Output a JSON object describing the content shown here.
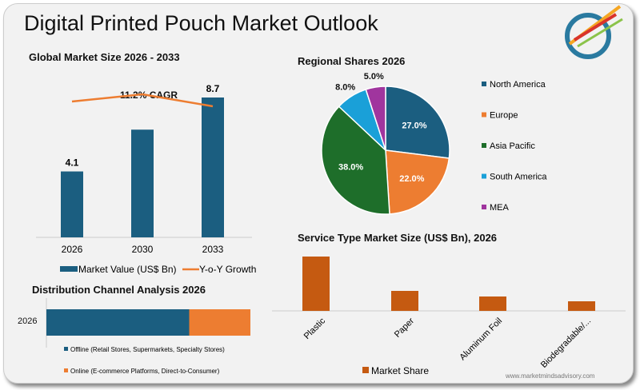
{
  "title": "Digital Printed Pouch Market Outlook",
  "website": "www.marketmindsadvisory.com",
  "logo": {
    "icon": "arrows-target-logo"
  },
  "chart_data": [
    {
      "type": "bar",
      "title": "Global Market Size 2026 - 2033",
      "categories": [
        "2026",
        "2030",
        "2033"
      ],
      "series": [
        {
          "name": "Market Value (US$ Bn)",
          "values": [
            4.1,
            6.7,
            8.7
          ],
          "color": "#1b5e80",
          "labels": [
            "4.1",
            "",
            "8.7"
          ]
        },
        {
          "name": "Y-o-Y Growth",
          "type": "line",
          "values": [
            0.62,
            0.68,
            0.58
          ],
          "color": "#ed7d31"
        }
      ],
      "annotation": "11.2% CAGR"
    },
    {
      "type": "pie",
      "title": "Regional Shares 2026",
      "categories": [
        "North America",
        "Europe",
        "Asia Pacific",
        "South America",
        "MEA"
      ],
      "values": [
        27,
        22,
        38,
        8,
        5
      ],
      "labels": [
        "27.0%",
        "22.0%",
        "38.0%",
        "8.0%",
        "5.0%"
      ],
      "colors": [
        "#1b5e80",
        "#ed7d31",
        "#1e6e2a",
        "#1aa0d8",
        "#a0359e"
      ]
    },
    {
      "type": "bar",
      "title": "Service Type Market Size (US$ Bn), 2026",
      "categories": [
        "Plastic",
        "Paper",
        "Aluminum Foil",
        "Biodegradable/..."
      ],
      "series": [
        {
          "name": "Market Share",
          "values": [
            68,
            25,
            18,
            12
          ],
          "color": "#c55a11"
        }
      ]
    },
    {
      "type": "bar",
      "orientation": "horizontal-stacked",
      "title": "Distribution Channel Analysis 2026",
      "categories": [
        "2026"
      ],
      "series": [
        {
          "name": "Offline (Retail Stores, Supermarkets, Specialty Stores)",
          "values": [
            70
          ],
          "color": "#1b5e80"
        },
        {
          "name": "Online (E-commerce Platforms, Direct-to-Consumer)",
          "values": [
            30
          ],
          "color": "#ed7d31"
        }
      ]
    }
  ]
}
